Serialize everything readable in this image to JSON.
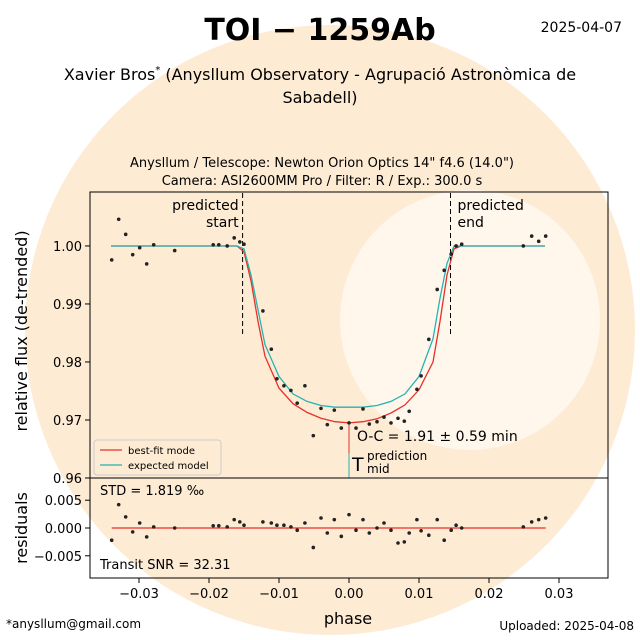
{
  "header": {
    "title": "TOI − 1259Ab",
    "date": "2025-04-07",
    "author": "Xavier Bros",
    "author_mark": "*",
    "affiliation": [
      "(Anysllum Observatory - Agrupació Astronòmica de",
      "Sabadell)"
    ]
  },
  "footer": {
    "email": "*anysllum@gmail.com",
    "uploaded": "Uploaded: 2025-04-08"
  },
  "chart_data": [
    {
      "type": "scatter",
      "subtitle": [
        "Anysllum / Telescope: Newton Orion Optics 14\" f4.6 (14.0\")",
        "Camera: ASI2600MM Pro / Filter: R / Exp.: 300.0 s"
      ],
      "ylabel": "relative flux (de-trended)",
      "xlim": [
        -0.037,
        0.037
      ],
      "ylim": [
        0.96,
        1.0093
      ],
      "yticks": [
        0.96,
        0.97,
        0.98,
        0.99,
        {
          "value": 1,
          "label": "1.00"
        }
      ],
      "points": {
        "color": "#222222",
        "x": [
          -0.0339,
          -0.0329,
          -0.0319,
          -0.0309,
          -0.0299,
          -0.0289,
          -0.0279,
          -0.0249,
          -0.0194,
          -0.0186,
          -0.0174,
          -0.0164,
          -0.0156,
          -0.015,
          -0.0123,
          -0.0111,
          -0.0103,
          -0.0093,
          -0.0083,
          -0.0074,
          -0.0063,
          -0.0051,
          -0.004,
          -0.0031,
          -0.0021,
          -0.0011,
          0,
          0.001,
          0.002,
          0.0029,
          0.004,
          0.005,
          0.006,
          0.007,
          0.0079,
          0.0086,
          0.0097,
          0.0103,
          0.0114,
          0.0126,
          0.0136,
          0.0146,
          0.0153,
          0.0161,
          0.0249,
          0.0261,
          0.0271,
          0.0281
        ],
        "values": [
          0.9976,
          1.0046,
          1.002,
          0.9985,
          0.9997,
          0.9969,
          1.0002,
          0.9992,
          1.0002,
          1.0002,
          1,
          1.0014,
          1.0007,
          1.0003,
          0.9888,
          0.9822,
          0.9771,
          0.9759,
          0.9751,
          0.9729,
          0.9759,
          0.9673,
          0.972,
          0.9692,
          0.9717,
          0.9686,
          0.9695,
          0.9686,
          0.9719,
          0.9693,
          0.9697,
          0.9705,
          0.9695,
          0.9703,
          0.9698,
          0.9715,
          0.9753,
          0.9776,
          0.9839,
          0.9925,
          0.9958,
          0.9986,
          1,
          1.0003,
          1,
          1.0017,
          1.0008,
          1.0017
        ]
      },
      "series": [
        {
          "name": "best-fit mode",
          "color": "#e8302a",
          "x": [
            -0.034,
            -0.016,
            -0.015,
            -0.014,
            -0.013,
            -0.012,
            -0.01,
            -0.008,
            -0.006,
            -0.004,
            -0.002,
            0,
            0.002,
            0.004,
            0.006,
            0.008,
            0.01,
            0.012,
            0.013,
            0.014,
            0.015,
            0.016,
            0.028
          ],
          "values": [
            1,
            1,
            0.999,
            0.994,
            0.987,
            0.981,
            0.9755,
            0.9728,
            0.9713,
            0.9703,
            0.9697,
            0.9695,
            0.9697,
            0.9702,
            0.9712,
            0.9726,
            0.9752,
            0.98,
            0.987,
            0.995,
            0.9995,
            1,
            1
          ]
        },
        {
          "name": "expected model",
          "color": "#27b3b0",
          "x": [
            -0.034,
            -0.016,
            -0.015,
            -0.014,
            -0.013,
            -0.012,
            -0.01,
            -0.008,
            -0.006,
            -0.004,
            -0.002,
            0,
            0.002,
            0.004,
            0.006,
            0.008,
            0.01,
            0.012,
            0.013,
            0.014,
            0.015,
            0.016,
            0.028
          ],
          "values": [
            1,
            1,
            0.9995,
            0.995,
            0.989,
            0.983,
            0.9775,
            0.9745,
            0.9732,
            0.9725,
            0.9722,
            0.9722,
            0.9722,
            0.9725,
            0.9732,
            0.9745,
            0.9775,
            0.984,
            0.991,
            0.997,
            1,
            1,
            1
          ]
        }
      ],
      "predicted_start": {
        "x": -0.0152,
        "label": [
          "predicted",
          "start"
        ]
      },
      "predicted_end": {
        "x": 0.0145,
        "label": [
          "predicted",
          "end"
        ]
      },
      "oc_label": "O-C = 1.91 ± 0.59 min",
      "tmid_label": {
        "main": "T",
        "sup": "prediction",
        "sub": "mid"
      }
    },
    {
      "type": "scatter",
      "ylabel": "residuals",
      "xlabel": "phase",
      "xlim": [
        -0.037,
        0.037
      ],
      "ylim": [
        -0.009,
        0.009
      ],
      "xticks": [
        {
          "value": -0.03,
          "label": "−0.03"
        },
        {
          "value": -0.02,
          "label": "−0.02"
        },
        {
          "value": -0.01,
          "label": "−0.01"
        },
        {
          "value": 0,
          "label": "0.00"
        },
        0.01,
        0.02,
        0.03
      ],
      "yticks": [
        {
          "value": -0.005,
          "label": "−0.005"
        },
        {
          "value": 0,
          "label": "0.000"
        },
        0.005
      ],
      "line_color": "#e8302a",
      "values": [
        -0.0022,
        0.0042,
        0.002,
        -0.0007,
        0.0009,
        -0.0016,
        0.0002,
        0,
        0.0004,
        0.0004,
        0.0002,
        0.0015,
        0.0011,
        0.0005,
        0.0011,
        0.0009,
        0.0005,
        0.0005,
        0.0002,
        -0.0004,
        0.0009,
        -0.0035,
        0.0018,
        -0.0009,
        0.0015,
        -0.0015,
        0.0024,
        -0.0004,
        0.0015,
        -0.0009,
        0,
        0.0009,
        -0.0004,
        -0.0027,
        -0.0025,
        -0.0009,
        0.0015,
        -0.0005,
        -0.0013,
        0.0015,
        -0.0022,
        -0.0004,
        0.0005,
        0,
        0.0002,
        0.0011,
        0.0015,
        0.0018
      ],
      "std_label": "STD = 1.819 ‰",
      "snr_label": "Transit SNR = 32.31"
    }
  ]
}
